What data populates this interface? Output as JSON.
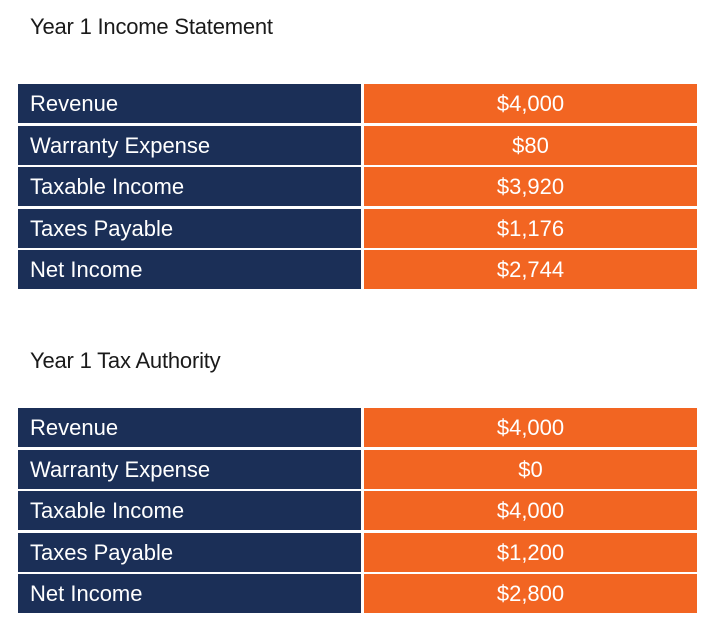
{
  "sections": [
    {
      "title": "Year 1 Income Statement",
      "rows": [
        [
          "Revenue",
          "$4,000"
        ],
        [
          "Warranty Expense",
          "$80"
        ],
        [
          "Taxable Income",
          "$3,920"
        ],
        [
          "Taxes Payable",
          "$1,176"
        ],
        [
          "Net Income",
          "$2,744"
        ]
      ]
    },
    {
      "title": "Year 1 Tax Authority",
      "rows": [
        [
          "Revenue",
          "$4,000"
        ],
        [
          "Warranty Expense",
          "$0"
        ],
        [
          "Taxable Income",
          "$4,000"
        ],
        [
          "Taxes Payable",
          "$1,200"
        ],
        [
          "Net Income",
          "$2,800"
        ]
      ]
    }
  ]
}
